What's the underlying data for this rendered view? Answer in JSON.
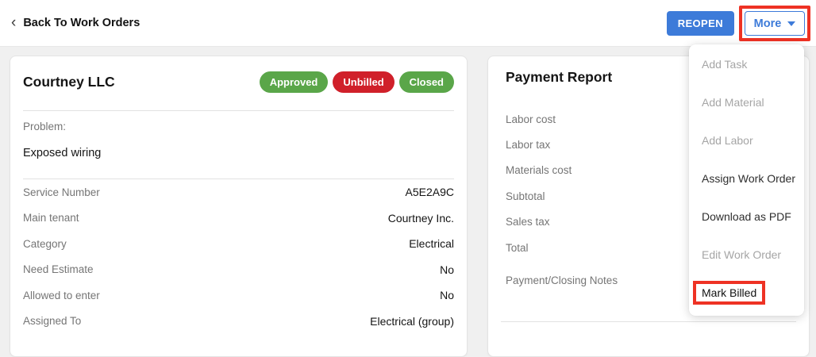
{
  "topbar": {
    "back_chevron_glyph": "‹",
    "back_label": "Back To Work Orders",
    "reopen_label": "REOPEN",
    "more_label": "More"
  },
  "work_order": {
    "title": "Courtney LLC",
    "badges": [
      {
        "label": "Approved",
        "color": "#5aa649"
      },
      {
        "label": "Unbilled",
        "color": "#d0202a"
      },
      {
        "label": "Closed",
        "color": "#5aa649"
      }
    ],
    "problem_label": "Problem:",
    "problem_value": "Exposed wiring",
    "details": [
      {
        "label": "Service Number",
        "value": "A5E2A9C"
      },
      {
        "label": "Main tenant",
        "value": "Courtney Inc."
      },
      {
        "label": "Category",
        "value": "Electrical"
      },
      {
        "label": "Need Estimate",
        "value": "No"
      },
      {
        "label": "Allowed to enter",
        "value": "No"
      },
      {
        "label": "Assigned To",
        "value": "Electrical (group)"
      }
    ]
  },
  "payment_report": {
    "title": "Payment Report",
    "rows": [
      "Labor cost",
      "Labor tax",
      "Materials cost",
      "Subtotal",
      "Sales tax",
      "Total",
      "Payment/Closing Notes"
    ]
  },
  "more_menu": {
    "items": [
      {
        "label": "Add Task",
        "enabled": false,
        "highlighted": false
      },
      {
        "label": "Add Material",
        "enabled": false,
        "highlighted": false
      },
      {
        "label": "Add Labor",
        "enabled": false,
        "highlighted": false
      },
      {
        "label": "Assign Work Order",
        "enabled": true,
        "highlighted": false
      },
      {
        "label": "Download as PDF",
        "enabled": true,
        "highlighted": false
      },
      {
        "label": "Edit Work Order",
        "enabled": false,
        "highlighted": false
      },
      {
        "label": "Mark Billed",
        "enabled": true,
        "highlighted": true
      }
    ]
  },
  "colors": {
    "primary_blue": "#3d7bd9",
    "badge_green": "#5aa649",
    "badge_red": "#d0202a",
    "annotation_red": "#ee3224",
    "page_background": "#f0f0f0"
  }
}
